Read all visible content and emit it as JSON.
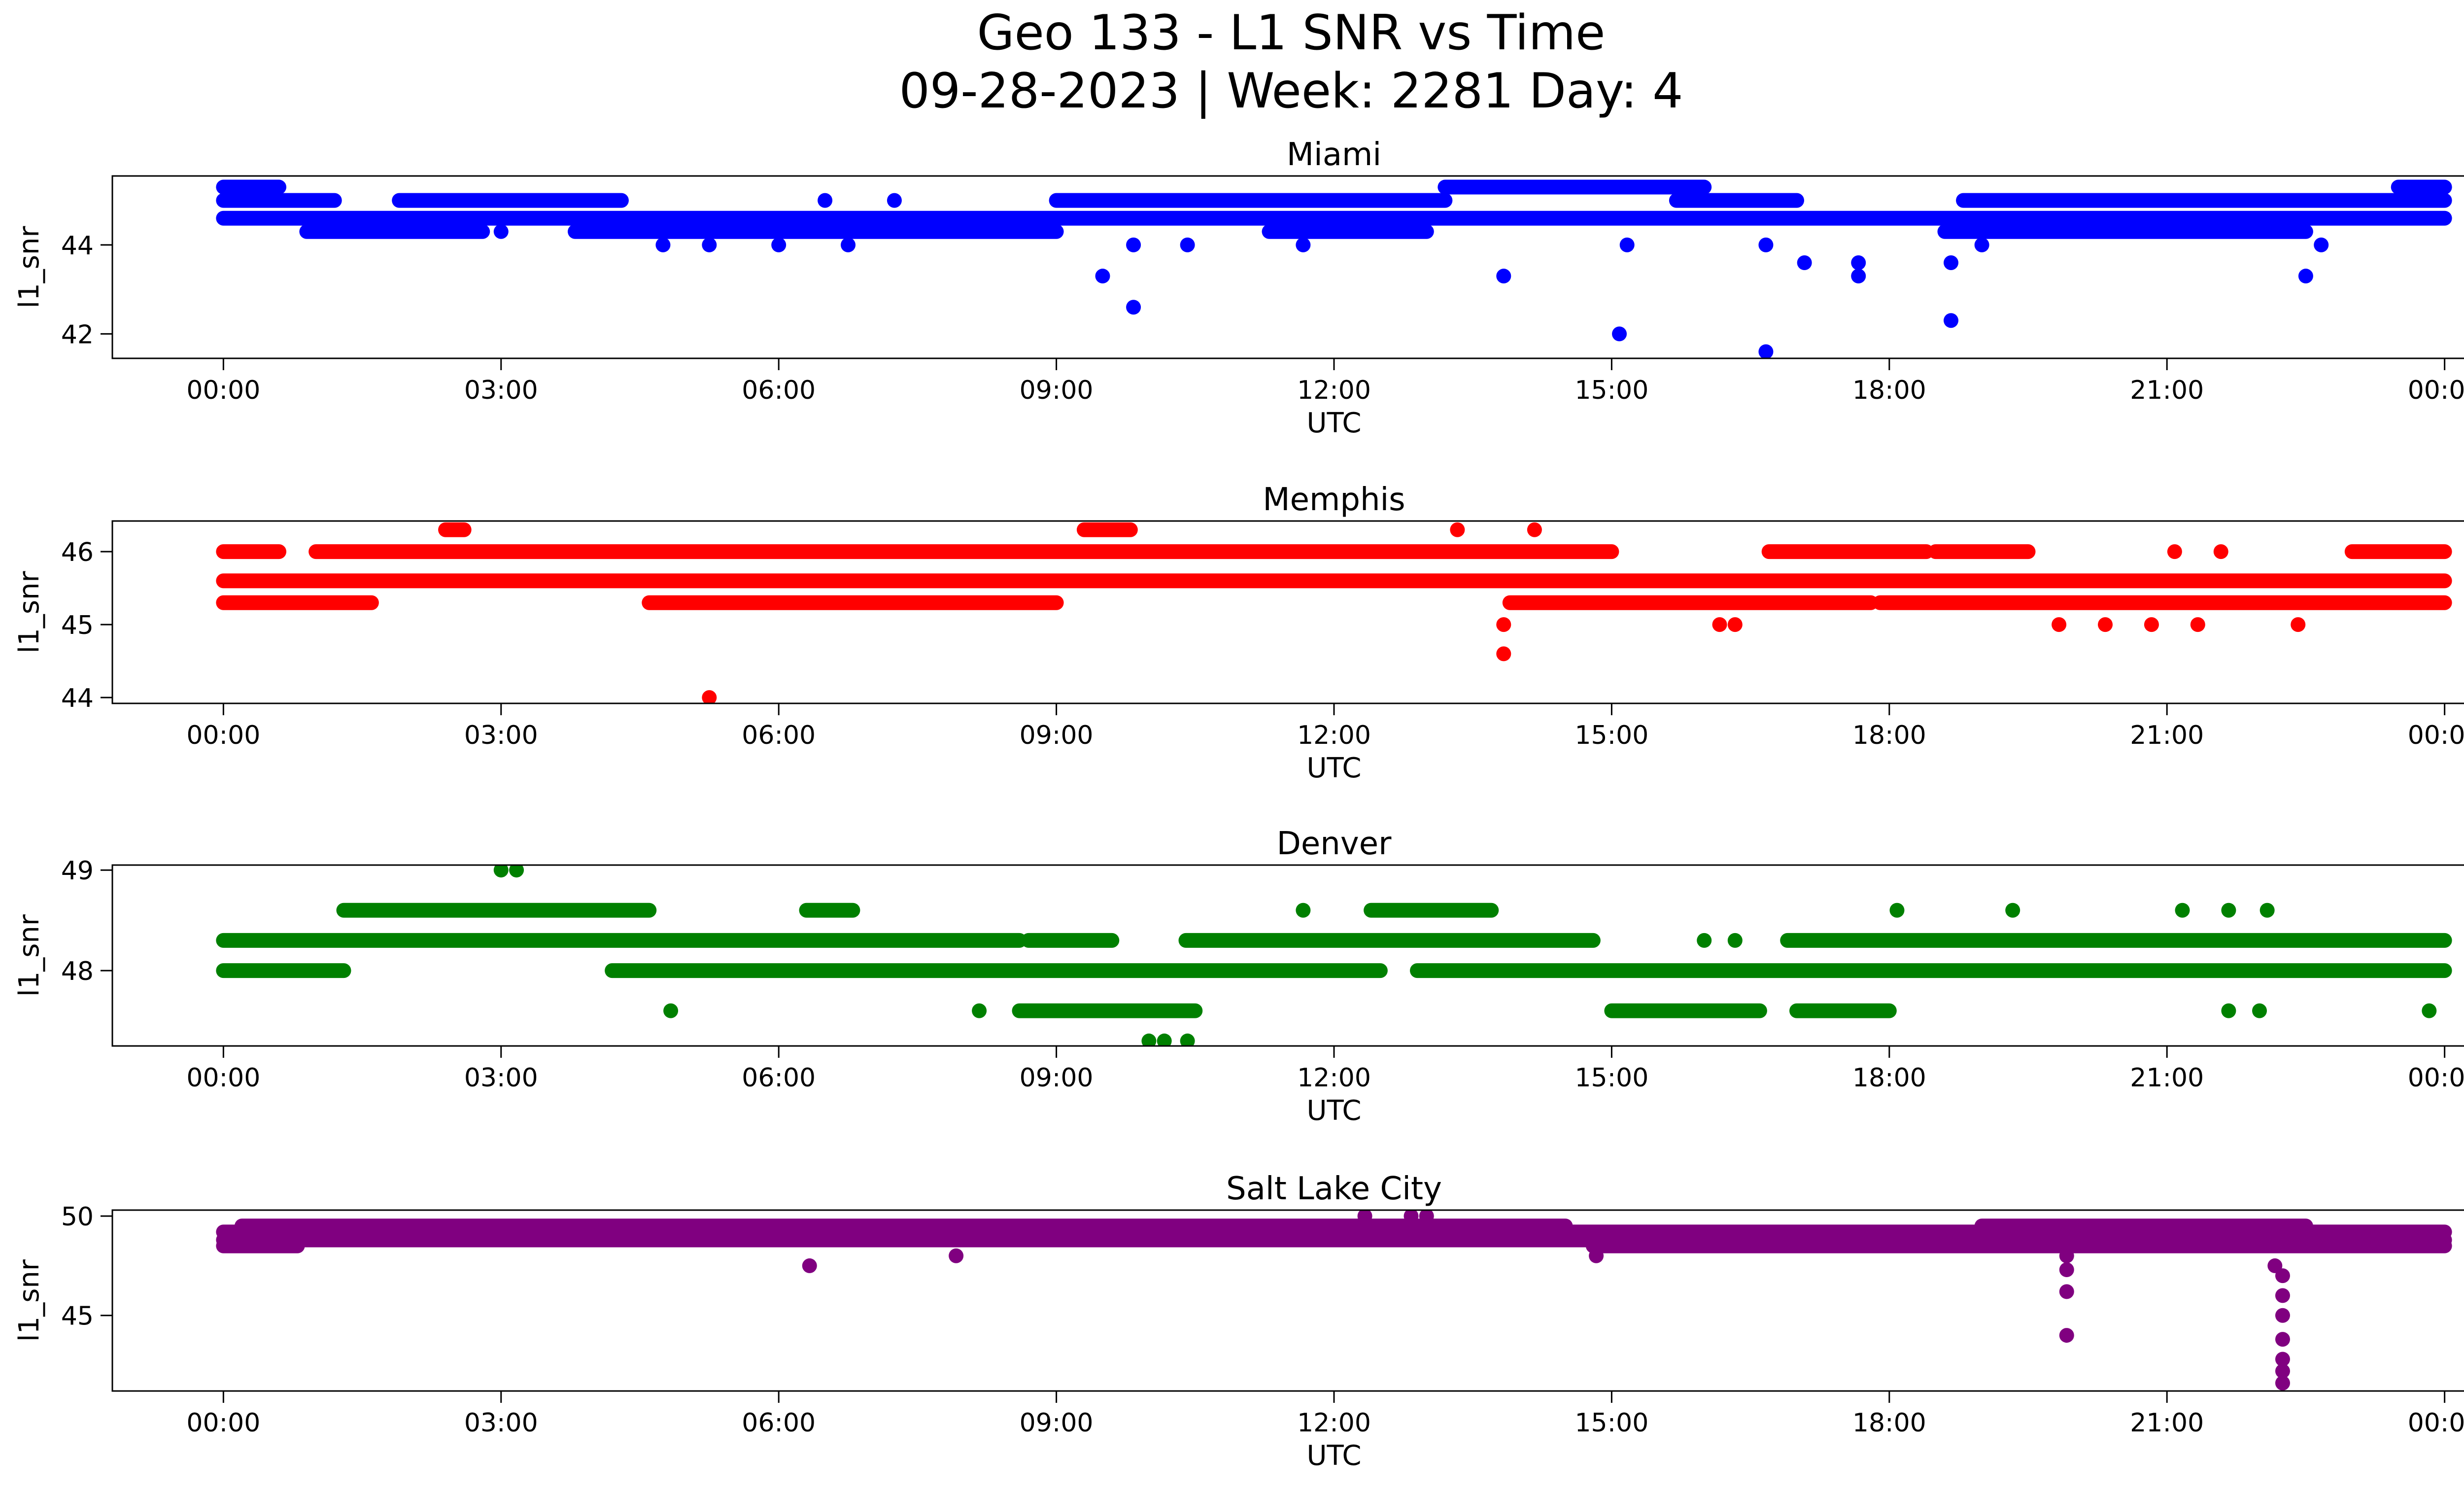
{
  "figure": {
    "title_line1": "Geo 133 - L1 SNR vs Time",
    "title_line2": "09-28-2023 | Week: 2281 Day: 4"
  },
  "chart_data": [
    {
      "type": "scatter",
      "title": "Miami",
      "xlabel": "UTC",
      "ylabel": "l1_snr",
      "color": "#0000ff",
      "x_ticks": [
        "00:00",
        "03:00",
        "06:00",
        "09:00",
        "12:00",
        "15:00",
        "18:00",
        "21:00",
        "00:00"
      ],
      "x_range_hours": [
        -1.2,
        25.2
      ],
      "y_ticks": [
        42,
        44
      ],
      "ylim": [
        41.45,
        45.55
      ],
      "bands": [
        {
          "y": 44.6,
          "segments": [
            [
              0,
              24
            ]
          ]
        },
        {
          "y": 45.0,
          "segments": [
            [
              0,
              1.2
            ],
            [
              1.9,
              4.3
            ],
            [
              9.0,
              13.2
            ],
            [
              15.7,
              17.0
            ],
            [
              18.8,
              24
            ]
          ]
        },
        {
          "y": 44.3,
          "segments": [
            [
              0.9,
              2.8
            ],
            [
              3.8,
              9.0
            ],
            [
              11.3,
              13.0
            ],
            [
              18.6,
              22.5
            ]
          ]
        },
        {
          "y": 45.3,
          "segments": [
            [
              0,
              0.6
            ],
            [
              13.2,
              16.0
            ],
            [
              23.5,
              24
            ]
          ]
        }
      ],
      "points": [
        {
          "x": "03:00",
          "y": 44.3
        },
        {
          "x": "04:45",
          "y": 44.0
        },
        {
          "x": "05:15",
          "y": 44.0
        },
        {
          "x": "06:00",
          "y": 44.0
        },
        {
          "x": "06:30",
          "y": 45.0
        },
        {
          "x": "06:45",
          "y": 44.0
        },
        {
          "x": "07:15",
          "y": 45.0
        },
        {
          "x": "09:30",
          "y": 43.3
        },
        {
          "x": "09:50",
          "y": 42.6
        },
        {
          "x": "09:50",
          "y": 44.0
        },
        {
          "x": "10:25",
          "y": 44.0
        },
        {
          "x": "11:40",
          "y": 44.0
        },
        {
          "x": "13:50",
          "y": 43.3
        },
        {
          "x": "15:05",
          "y": 42.0
        },
        {
          "x": "15:10",
          "y": 44.0
        },
        {
          "x": "16:40",
          "y": 41.6
        },
        {
          "x": "16:40",
          "y": 44.0
        },
        {
          "x": "17:05",
          "y": 43.6
        },
        {
          "x": "17:40",
          "y": 43.6
        },
        {
          "x": "17:40",
          "y": 43.3
        },
        {
          "x": "18:40",
          "y": 43.6
        },
        {
          "x": "18:40",
          "y": 42.3
        },
        {
          "x": "19:00",
          "y": 44.0
        },
        {
          "x": "22:30",
          "y": 43.3
        },
        {
          "x": "22:40",
          "y": 44.0
        }
      ]
    },
    {
      "type": "scatter",
      "title": "Memphis",
      "xlabel": "UTC",
      "ylabel": "l1_snr",
      "color": "#ff0000",
      "x_ticks": [
        "00:00",
        "03:00",
        "06:00",
        "09:00",
        "12:00",
        "15:00",
        "18:00",
        "21:00",
        "00:00"
      ],
      "x_range_hours": [
        -1.2,
        25.2
      ],
      "y_ticks": [
        44,
        45,
        46
      ],
      "ylim": [
        43.92,
        46.42
      ],
      "bands": [
        {
          "y": 45.6,
          "segments": [
            [
              0,
              24
            ]
          ]
        },
        {
          "y": 46.0,
          "segments": [
            [
              0,
              0.6
            ],
            [
              1.0,
              15.0
            ],
            [
              16.7,
              18.4
            ],
            [
              18.5,
              19.5
            ],
            [
              23.0,
              24
            ]
          ]
        },
        {
          "y": 45.3,
          "segments": [
            [
              0,
              1.6
            ],
            [
              4.6,
              9.0
            ],
            [
              13.9,
              17.8
            ],
            [
              17.9,
              24
            ]
          ]
        },
        {
          "y": 46.3,
          "segments": [
            [
              2.4,
              2.6
            ],
            [
              9.3,
              9.8
            ]
          ]
        }
      ],
      "points": [
        {
          "x": "05:15",
          "y": 44.0
        },
        {
          "x": "13:50",
          "y": 44.6
        },
        {
          "x": "13:50",
          "y": 45.0
        },
        {
          "x": "16:10",
          "y": 45.0
        },
        {
          "x": "16:20",
          "y": 45.0
        },
        {
          "x": "19:50",
          "y": 45.0
        },
        {
          "x": "20:20",
          "y": 45.0
        },
        {
          "x": "20:50",
          "y": 45.0
        },
        {
          "x": "21:20",
          "y": 45.0
        },
        {
          "x": "22:25",
          "y": 45.0
        },
        {
          "x": "13:20",
          "y": 46.3
        },
        {
          "x": "14:10",
          "y": 46.3
        },
        {
          "x": "21:05",
          "y": 46.0
        },
        {
          "x": "21:35",
          "y": 46.0
        }
      ]
    },
    {
      "type": "scatter",
      "title": "Denver",
      "xlabel": "UTC",
      "ylabel": "l1_snr",
      "color": "#008000",
      "x_ticks": [
        "00:00",
        "03:00",
        "06:00",
        "09:00",
        "12:00",
        "15:00",
        "18:00",
        "21:00",
        "00:00"
      ],
      "x_range_hours": [
        -1.2,
        25.2
      ],
      "y_ticks": [
        48,
        49
      ],
      "ylim": [
        47.25,
        49.05
      ],
      "bands": [
        {
          "y": 48.3,
          "segments": [
            [
              0,
              8.6
            ],
            [
              8.7,
              9.6
            ],
            [
              10.4,
              14.8
            ],
            [
              16.9,
              24
            ]
          ]
        },
        {
          "y": 48.0,
          "segments": [
            [
              0,
              1.3
            ],
            [
              4.2,
              12.5
            ],
            [
              12.9,
              24
            ]
          ]
        },
        {
          "y": 48.6,
          "segments": [
            [
              1.3,
              4.6
            ],
            [
              6.3,
              6.8
            ],
            [
              12.4,
              13.7
            ]
          ]
        },
        {
          "y": 47.6,
          "segments": [
            [
              8.6,
              10.5
            ],
            [
              15.0,
              16.6
            ],
            [
              17.0,
              18.0
            ]
          ]
        }
      ],
      "points": [
        {
          "x": "03:00",
          "y": 49.0
        },
        {
          "x": "03:10",
          "y": 49.0
        },
        {
          "x": "04:50",
          "y": 47.6
        },
        {
          "x": "08:10",
          "y": 47.6
        },
        {
          "x": "10:00",
          "y": 47.3
        },
        {
          "x": "10:10",
          "y": 47.3
        },
        {
          "x": "10:25",
          "y": 47.3
        },
        {
          "x": "11:40",
          "y": 48.6
        },
        {
          "x": "18:05",
          "y": 48.6
        },
        {
          "x": "19:20",
          "y": 48.6
        },
        {
          "x": "21:10",
          "y": 48.6
        },
        {
          "x": "21:40",
          "y": 48.6
        },
        {
          "x": "22:05",
          "y": 48.6
        },
        {
          "x": "16:00",
          "y": 48.3
        },
        {
          "x": "16:20",
          "y": 48.3
        },
        {
          "x": "21:40",
          "y": 47.6
        },
        {
          "x": "22:00",
          "y": 47.6
        },
        {
          "x": "23:50",
          "y": 47.6
        }
      ]
    },
    {
      "type": "scatter",
      "title": "Salt Lake City",
      "xlabel": "UTC",
      "ylabel": "l1_snr",
      "color": "#800080",
      "x_ticks": [
        "00:00",
        "03:00",
        "06:00",
        "09:00",
        "12:00",
        "15:00",
        "18:00",
        "21:00",
        "00:00"
      ],
      "x_range_hours": [
        -1.2,
        25.2
      ],
      "y_ticks": [
        45,
        50
      ],
      "ylim": [
        41.2,
        50.3
      ],
      "bands": [
        {
          "y": 49.2,
          "segments": [
            [
              0,
              24
            ]
          ]
        },
        {
          "y": 48.8,
          "segments": [
            [
              0,
              24
            ]
          ]
        },
        {
          "y": 49.5,
          "segments": [
            [
              0.2,
              14.5
            ],
            [
              19.0,
              22.5
            ]
          ]
        },
        {
          "y": 48.5,
          "segments": [
            [
              0,
              0.8
            ],
            [
              14.8,
              24
            ]
          ]
        }
      ],
      "points": [
        {
          "x": "06:20",
          "y": 47.5
        },
        {
          "x": "07:55",
          "y": 48.0
        },
        {
          "x": "12:20",
          "y": 50.0
        },
        {
          "x": "12:50",
          "y": 50.0
        },
        {
          "x": "13:00",
          "y": 50.0
        },
        {
          "x": "14:50",
          "y": 48.0
        },
        {
          "x": "19:55",
          "y": 48.0
        },
        {
          "x": "19:55",
          "y": 47.3
        },
        {
          "x": "19:55",
          "y": 46.2
        },
        {
          "x": "19:55",
          "y": 44.0
        },
        {
          "x": "22:10",
          "y": 47.5
        },
        {
          "x": "22:15",
          "y": 47.0
        },
        {
          "x": "22:15",
          "y": 46.0
        },
        {
          "x": "22:15",
          "y": 45.0
        },
        {
          "x": "22:15",
          "y": 43.8
        },
        {
          "x": "22:15",
          "y": 42.8
        },
        {
          "x": "22:15",
          "y": 42.2
        },
        {
          "x": "22:15",
          "y": 41.6
        }
      ]
    }
  ]
}
